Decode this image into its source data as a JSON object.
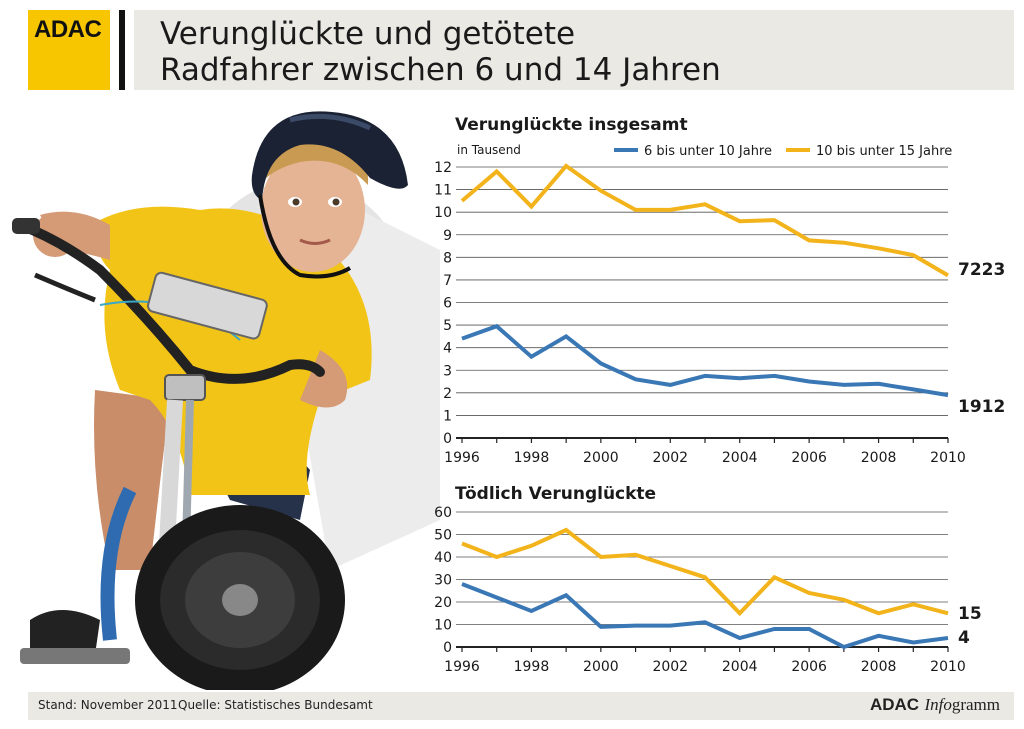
{
  "logo": {
    "text": "ADAC",
    "color": "#f7c600"
  },
  "title": {
    "line1": "Verunglückte und getötete",
    "line2": "Radfahrer zwischen 6 und 14 Jahren"
  },
  "footer": {
    "stand": "Stand: November 2011",
    "quelle": "Quelle: Statistisches Bundesamt",
    "brand_bold": "ADAC",
    "brand_italic": "Info",
    "brand_rest": "gramm"
  },
  "colors": {
    "series_young": "#3a77b5",
    "series_old": "#f2b31b"
  },
  "chart_data": [
    {
      "type": "line",
      "title": "Verunglückte insgesamt",
      "ylabel": "in Tausend",
      "x": [
        1996,
        1997,
        1998,
        1999,
        2000,
        2001,
        2002,
        2003,
        2004,
        2005,
        2006,
        2007,
        2008,
        2009,
        2010
      ],
      "xticks": [
        "1996",
        "1998",
        "2000",
        "2002",
        "2004",
        "2006",
        "2008",
        "2010"
      ],
      "yticks": [
        "0",
        "1",
        "2",
        "3",
        "4",
        "5",
        "6",
        "7",
        "8",
        "9",
        "10",
        "11",
        "12"
      ],
      "ylim": [
        0,
        12
      ],
      "xlim": [
        1996,
        2010
      ],
      "grid": true,
      "legend": "top-right",
      "series": [
        {
          "name": "6 bis unter 10 Jahre",
          "color": "#3a77b5",
          "values": [
            4.4,
            4.95,
            3.6,
            4.5,
            3.3,
            2.6,
            2.35,
            2.75,
            2.65,
            2.75,
            2.5,
            2.35,
            2.4,
            2.15,
            1.9
          ],
          "end_label": "1912"
        },
        {
          "name": "10 bis unter 15 Jahre",
          "color": "#f2b31b",
          "values": [
            10.5,
            11.8,
            10.25,
            12.05,
            10.95,
            10.1,
            10.1,
            10.35,
            9.6,
            9.65,
            8.75,
            8.65,
            8.4,
            8.1,
            7.2
          ],
          "end_label": "7223"
        }
      ]
    },
    {
      "type": "line",
      "title": "Tödlich Verunglückte",
      "x": [
        1996,
        1997,
        1998,
        1999,
        2000,
        2001,
        2002,
        2003,
        2004,
        2005,
        2006,
        2007,
        2008,
        2009,
        2010
      ],
      "xticks": [
        "1996",
        "1998",
        "2000",
        "2002",
        "2004",
        "2006",
        "2008",
        "2010"
      ],
      "yticks": [
        "0",
        "10",
        "20",
        "30",
        "40",
        "50",
        "60"
      ],
      "ylim": [
        0,
        60
      ],
      "xlim": [
        1996,
        2010
      ],
      "grid": true,
      "series": [
        {
          "name": "6 bis unter 10 Jahre",
          "color": "#3a77b5",
          "values": [
            28,
            22,
            16,
            23,
            9,
            9.5,
            9.5,
            11,
            4,
            8,
            8,
            0,
            5,
            2,
            4
          ],
          "end_label": "4"
        },
        {
          "name": "10 bis unter 15 Jahre",
          "color": "#f2b31b",
          "values": [
            46,
            40,
            45,
            52,
            40,
            41,
            36,
            31,
            15,
            31,
            24,
            21,
            15,
            19,
            15
          ],
          "end_label": "15"
        }
      ]
    }
  ]
}
